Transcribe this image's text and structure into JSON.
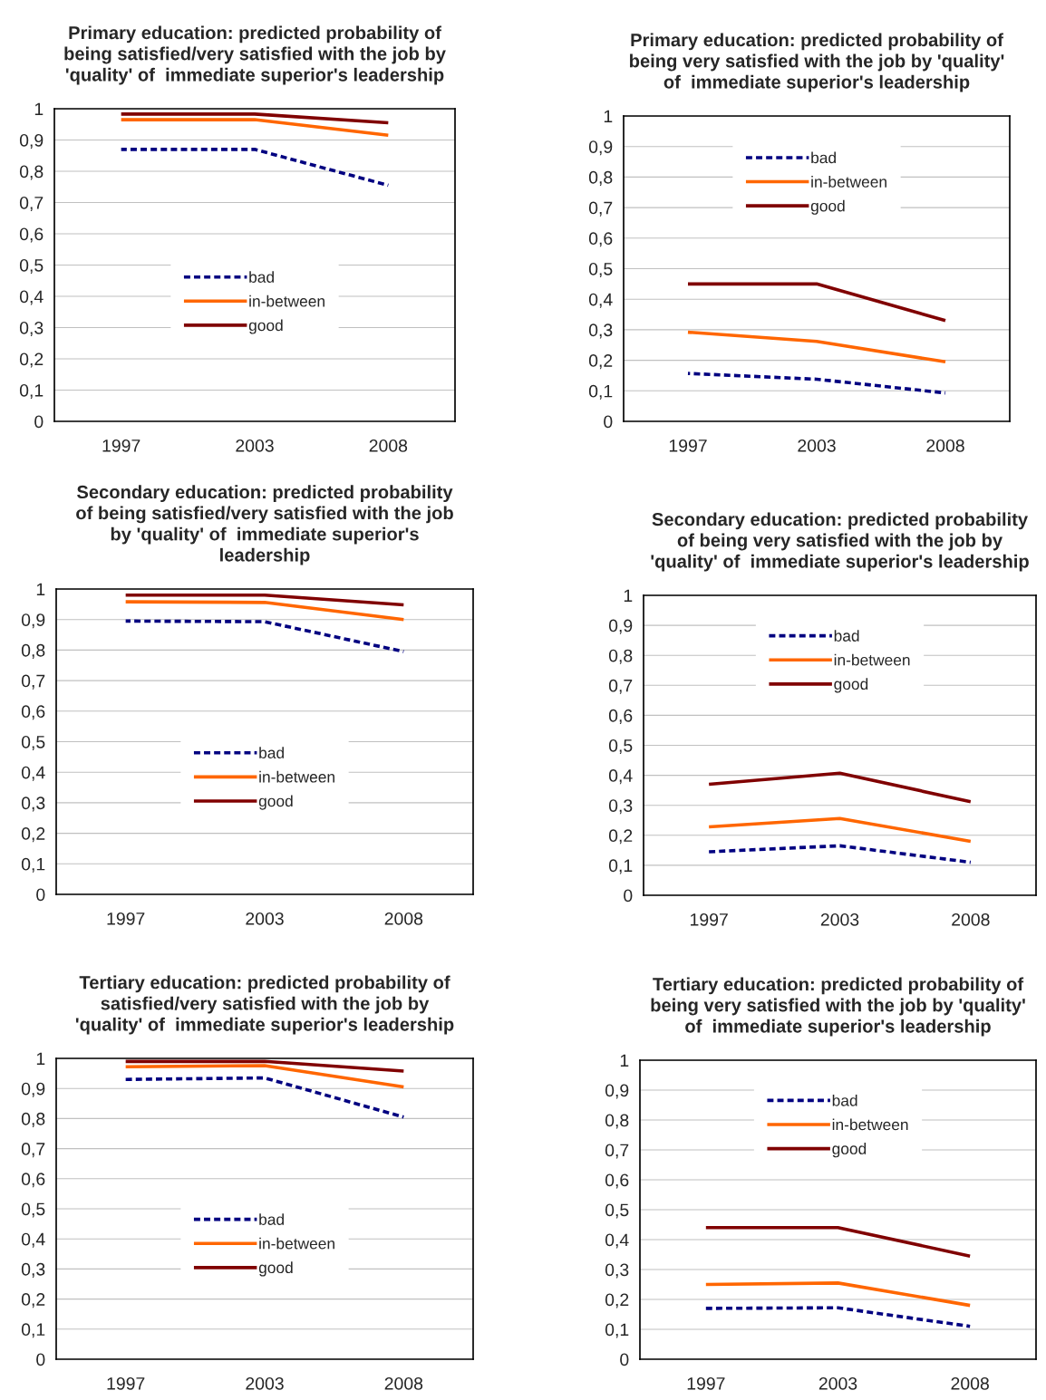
{
  "chart_data": [
    {
      "type": "line",
      "title": "Primary education: predicted probability of\nbeing satisfied/very satisfied with the job by\n'quality' of  immediate superior's leadership",
      "categories": [
        "1997",
        "2003",
        "2008"
      ],
      "ylim": [
        0,
        1
      ],
      "yticks": [
        {
          "value": 0,
          "label": "0"
        },
        {
          "value": 0.1,
          "label": "0,1"
        },
        {
          "value": 0.2,
          "label": "0,2"
        },
        {
          "value": 0.3,
          "label": "0,3"
        },
        {
          "value": 0.4,
          "label": "0,4"
        },
        {
          "value": 0.5,
          "label": "0,5"
        },
        {
          "value": 0.6,
          "label": "0,6"
        },
        {
          "value": 0.7,
          "label": "0,7"
        },
        {
          "value": 0.8,
          "label": "0,8"
        },
        {
          "value": 0.9,
          "label": "0,9"
        },
        {
          "value": 1,
          "label": "1"
        }
      ],
      "grid": "y",
      "legend": "center",
      "marker": "none",
      "series": [
        {
          "name": "bad",
          "color": "#000080",
          "line_style": "dashed",
          "values": [
            0.87,
            0.87,
            0.755
          ]
        },
        {
          "name": "in-between",
          "color": "#ff6600",
          "line_style": "solid",
          "values": [
            0.965,
            0.965,
            0.915
          ]
        },
        {
          "name": "good",
          "color": "#800000",
          "line_style": "solid",
          "values": [
            0.983,
            0.983,
            0.955
          ]
        }
      ]
    },
    {
      "type": "line",
      "title": "Primary education: predicted probability of\nbeing very satisfied with the job by 'quality'\nof  immediate superior's leadership",
      "categories": [
        "1997",
        "2003",
        "2008"
      ],
      "ylim": [
        0,
        1
      ],
      "yticks": [
        {
          "value": 0,
          "label": "0"
        },
        {
          "value": 0.1,
          "label": "0,1"
        },
        {
          "value": 0.2,
          "label": "0,2"
        },
        {
          "value": 0.3,
          "label": "0,3"
        },
        {
          "value": 0.4,
          "label": "0,4"
        },
        {
          "value": 0.5,
          "label": "0,5"
        },
        {
          "value": 0.6,
          "label": "0,6"
        },
        {
          "value": 0.7,
          "label": "0,7"
        },
        {
          "value": 0.8,
          "label": "0,8"
        },
        {
          "value": 0.9,
          "label": "0,9"
        },
        {
          "value": 1,
          "label": "1"
        }
      ],
      "grid": "y",
      "legend": "top",
      "marker": "none",
      "series": [
        {
          "name": "bad",
          "color": "#000080",
          "line_style": "dashed",
          "values": [
            0.157,
            0.138,
            0.093
          ]
        },
        {
          "name": "in-between",
          "color": "#ff6600",
          "line_style": "solid",
          "values": [
            0.292,
            0.262,
            0.195
          ]
        },
        {
          "name": "good",
          "color": "#800000",
          "line_style": "solid",
          "values": [
            0.45,
            0.45,
            0.33
          ]
        }
      ]
    },
    {
      "type": "line",
      "title": "Secondary education: predicted probability\nof being satisfied/very satisfied with the job\nby 'quality' of  immediate superior's\nleadership",
      "categories": [
        "1997",
        "2003",
        "2008"
      ],
      "ylim": [
        0,
        1
      ],
      "yticks": [
        {
          "value": 0,
          "label": "0"
        },
        {
          "value": 0.1,
          "label": "0,1"
        },
        {
          "value": 0.2,
          "label": "0,2"
        },
        {
          "value": 0.3,
          "label": "0,3"
        },
        {
          "value": 0.4,
          "label": "0,4"
        },
        {
          "value": 0.5,
          "label": "0,5"
        },
        {
          "value": 0.6,
          "label": "0,6"
        },
        {
          "value": 0.7,
          "label": "0,7"
        },
        {
          "value": 0.8,
          "label": "0,8"
        },
        {
          "value": 0.9,
          "label": "0,9"
        },
        {
          "value": 1,
          "label": "1"
        }
      ],
      "grid": "y",
      "legend": "center",
      "marker": "none",
      "series": [
        {
          "name": "bad",
          "color": "#000080",
          "line_style": "dashed",
          "values": [
            0.895,
            0.893,
            0.795
          ]
        },
        {
          "name": "in-between",
          "color": "#ff6600",
          "line_style": "solid",
          "values": [
            0.958,
            0.956,
            0.9
          ]
        },
        {
          "name": "good",
          "color": "#800000",
          "line_style": "solid",
          "values": [
            0.98,
            0.98,
            0.948
          ]
        }
      ]
    },
    {
      "type": "line",
      "title": "Secondary education: predicted probability\nof being very satisfied with the job by\n'quality' of  immediate superior's leadership",
      "categories": [
        "1997",
        "2003",
        "2008"
      ],
      "ylim": [
        0,
        1
      ],
      "yticks": [
        {
          "value": 0,
          "label": "0"
        },
        {
          "value": 0.1,
          "label": "0,1"
        },
        {
          "value": 0.2,
          "label": "0,2"
        },
        {
          "value": 0.3,
          "label": "0,3"
        },
        {
          "value": 0.4,
          "label": "0,4"
        },
        {
          "value": 0.5,
          "label": "0,5"
        },
        {
          "value": 0.6,
          "label": "0,6"
        },
        {
          "value": 0.7,
          "label": "0,7"
        },
        {
          "value": 0.8,
          "label": "0,8"
        },
        {
          "value": 0.9,
          "label": "0,9"
        },
        {
          "value": 1,
          "label": "1"
        }
      ],
      "grid": "y",
      "legend": "top",
      "marker": "none",
      "series": [
        {
          "name": "bad",
          "color": "#000080",
          "line_style": "dashed",
          "values": [
            0.145,
            0.165,
            0.11
          ]
        },
        {
          "name": "in-between",
          "color": "#ff6600",
          "line_style": "solid",
          "values": [
            0.228,
            0.256,
            0.18
          ]
        },
        {
          "name": "good",
          "color": "#800000",
          "line_style": "solid",
          "values": [
            0.37,
            0.407,
            0.312
          ]
        }
      ]
    },
    {
      "type": "line",
      "title": "Tertiary education: predicted probability of\nsatisfied/very satisfied with the job by\n'quality' of  immediate superior's leadership",
      "categories": [
        "1997",
        "2003",
        "2008"
      ],
      "ylim": [
        0,
        1
      ],
      "yticks": [
        {
          "value": 0,
          "label": "0"
        },
        {
          "value": 0.1,
          "label": "0,1"
        },
        {
          "value": 0.2,
          "label": "0,2"
        },
        {
          "value": 0.3,
          "label": "0,3"
        },
        {
          "value": 0.4,
          "label": "0,4"
        },
        {
          "value": 0.5,
          "label": "0,5"
        },
        {
          "value": 0.6,
          "label": "0,6"
        },
        {
          "value": 0.7,
          "label": "0,7"
        },
        {
          "value": 0.8,
          "label": "0,8"
        },
        {
          "value": 0.9,
          "label": "0,9"
        },
        {
          "value": 1,
          "label": "1"
        }
      ],
      "grid": "y",
      "legend": "center",
      "marker": "none",
      "series": [
        {
          "name": "bad",
          "color": "#000080",
          "line_style": "dashed",
          "values": [
            0.93,
            0.935,
            0.805
          ]
        },
        {
          "name": "in-between",
          "color": "#ff6600",
          "line_style": "solid",
          "values": [
            0.972,
            0.976,
            0.905
          ]
        },
        {
          "name": "good",
          "color": "#800000",
          "line_style": "solid",
          "values": [
            0.99,
            0.99,
            0.958
          ]
        }
      ]
    },
    {
      "type": "line",
      "title": "Tertiary education: predicted probability of\nbeing very satisfied with the job by 'quality'\nof  immediate superior's leadership",
      "categories": [
        "1997",
        "2003",
        "2008"
      ],
      "ylim": [
        0,
        1
      ],
      "yticks": [
        {
          "value": 0,
          "label": "0"
        },
        {
          "value": 0.1,
          "label": "0,1"
        },
        {
          "value": 0.2,
          "label": "0,2"
        },
        {
          "value": 0.3,
          "label": "0,3"
        },
        {
          "value": 0.4,
          "label": "0,4"
        },
        {
          "value": 0.5,
          "label": "0,5"
        },
        {
          "value": 0.6,
          "label": "0,6"
        },
        {
          "value": 0.7,
          "label": "0,7"
        },
        {
          "value": 0.8,
          "label": "0,8"
        },
        {
          "value": 0.9,
          "label": "0,9"
        },
        {
          "value": 1,
          "label": "1"
        }
      ],
      "grid": "y",
      "legend": "top",
      "marker": "none",
      "series": [
        {
          "name": "bad",
          "color": "#000080",
          "line_style": "dashed",
          "values": [
            0.17,
            0.172,
            0.11
          ]
        },
        {
          "name": "in-between",
          "color": "#ff6600",
          "line_style": "solid",
          "values": [
            0.25,
            0.255,
            0.18
          ]
        },
        {
          "name": "good",
          "color": "#800000",
          "line_style": "solid",
          "values": [
            0.44,
            0.44,
            0.345
          ]
        }
      ]
    }
  ]
}
